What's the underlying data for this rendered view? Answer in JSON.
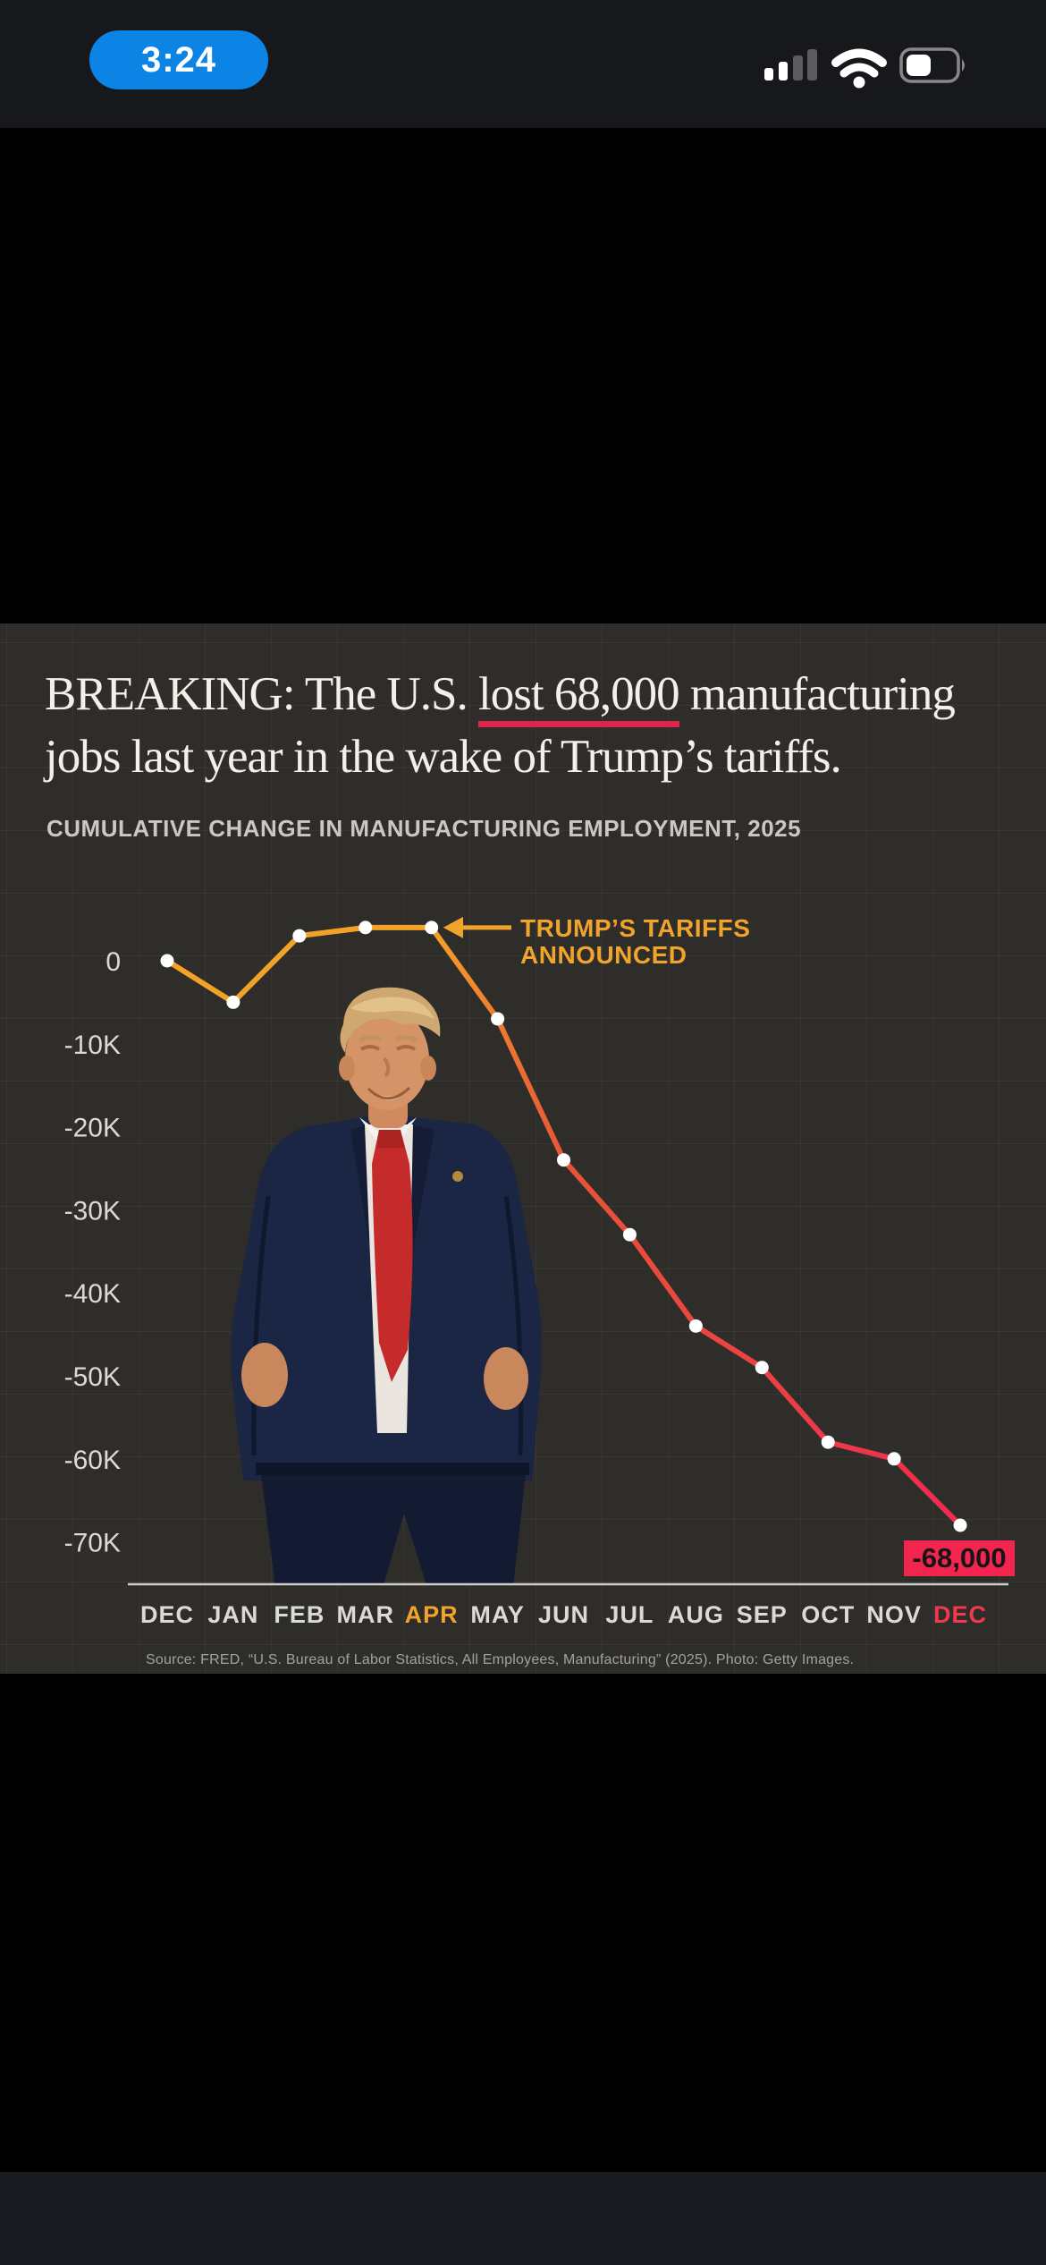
{
  "status_bar": {
    "time": "3:24",
    "icons": {
      "cellular": "cellular-signal-icon (2 of 4 bars filled)",
      "wifi": "wifi-icon (full)",
      "battery": "battery-icon (about 40% filled)"
    }
  },
  "card": {
    "headline": {
      "line1_pre": "BREAKING: The U.S. ",
      "line1_underlined": "lost 68,000",
      "line1_post": " manufacturing",
      "line2": "jobs last year in the wake of Trump’s tariffs."
    },
    "subtitle": "CUMULATIVE CHANGE IN MANUFACTURING EMPLOYMENT, 2025",
    "source": "Source: FRED, “U.S. Bureau of Labor Statistics, All Employees, Manufacturing” (2025). Photo: Getty Images."
  },
  "chart_data": {
    "type": "line",
    "title": "Cumulative change in manufacturing employment, 2025",
    "categories": [
      "DEC",
      "JAN",
      "FEB",
      "MAR",
      "APR",
      "MAY",
      "JUN",
      "JUL",
      "AUG",
      "SEP",
      "OCT",
      "NOV",
      "DEC"
    ],
    "values": [
      0,
      -5000,
      3000,
      4000,
      4000,
      -7000,
      -24000,
      -33000,
      -44000,
      -49000,
      -58000,
      -60000,
      -68000
    ],
    "y_ticks": [
      "0",
      "-10K",
      "-20K",
      "-30K",
      "-40K",
      "-50K",
      "-60K",
      "-70K"
    ],
    "y_tick_values": [
      0,
      -10000,
      -20000,
      -30000,
      -40000,
      -50000,
      -60000,
      -70000
    ],
    "ylim": [
      -75000,
      8000
    ],
    "grid": "faint square grid",
    "legend_position": "none",
    "annotation": {
      "line1": "TRUMP’S TARIFFS",
      "line2": "ANNOUNCED",
      "points_at": "APR"
    },
    "end_label": "-68,000",
    "highlight_month_indices": {
      "gold": 4,
      "red": 12
    },
    "colors": {
      "gold": "#f0a42c",
      "red_label": "#f0384f",
      "line_gold": "#f3a229",
      "line_mid": "#e85437",
      "line_red": "#ef2c50",
      "dot": "#ffffff",
      "badge_bg": "#f2254e",
      "badge_text": "#151515",
      "axis": "#cfcdc9",
      "tick_text": "#dcdad5"
    }
  }
}
